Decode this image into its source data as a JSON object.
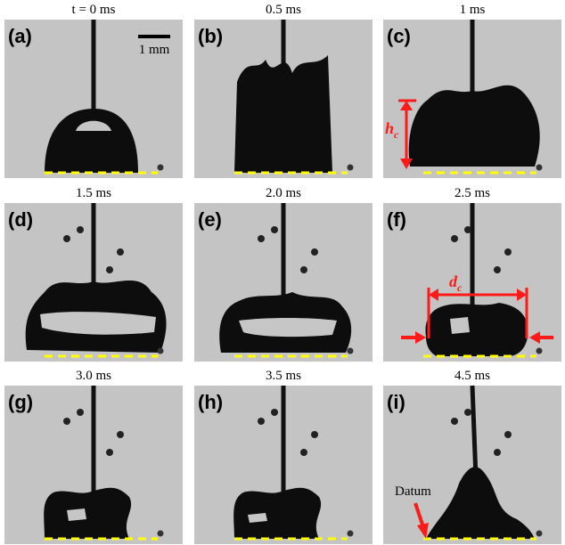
{
  "panels": [
    {
      "label": "(a)",
      "time": "t = 0 ms"
    },
    {
      "label": "(b)",
      "time": "0.5 ms"
    },
    {
      "label": "(c)",
      "time": "1 ms"
    },
    {
      "label": "(d)",
      "time": "1.5 ms"
    },
    {
      "label": "(e)",
      "time": "2.0 ms"
    },
    {
      "label": "(f)",
      "time": "2.5 ms"
    },
    {
      "label": "(g)",
      "time": "3.0 ms"
    },
    {
      "label": "(h)",
      "time": "3.5 ms"
    },
    {
      "label": "(i)",
      "time": "4.5 ms"
    }
  ],
  "scale_bar": "1 mm",
  "annotations": {
    "height": {
      "symbol": "h",
      "subscript": "c"
    },
    "diameter": {
      "symbol": "d",
      "subscript": "c"
    },
    "datum": "Datum"
  }
}
